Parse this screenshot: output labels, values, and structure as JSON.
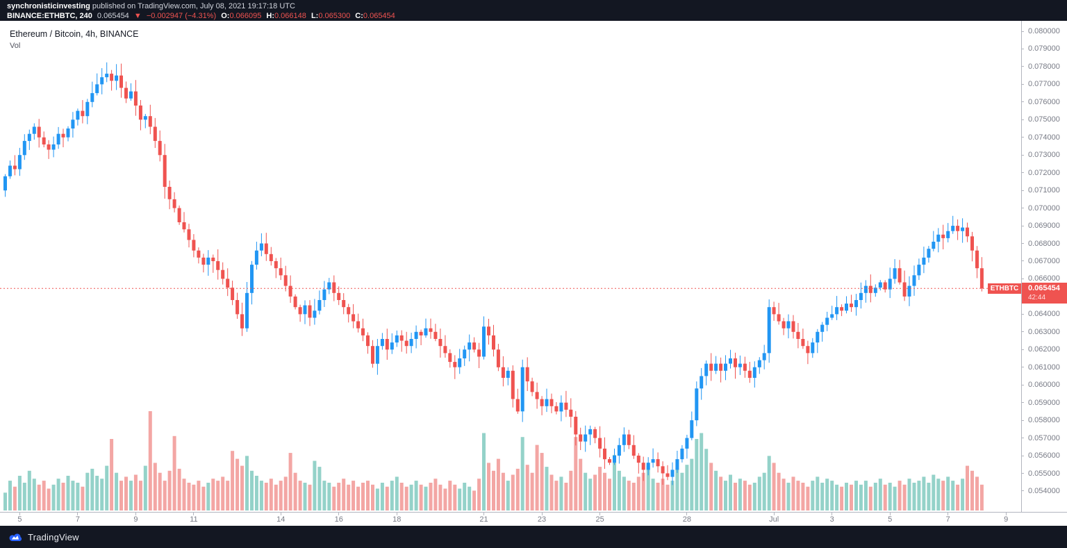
{
  "header": {
    "line1_user": "synchronisticinvesting",
    "line1_rest": " published on TradingView.com, July 08, 2021 19:17:18 UTC",
    "symbol": "BINANCE:ETHBTC, 240",
    "last": "0.065454",
    "arrow": "▼",
    "change": "−0.002947 (−4.31%)",
    "o": {
      "label": "O:",
      "value": "0.066095"
    },
    "h": {
      "label": "H:",
      "value": "0.066148"
    },
    "l": {
      "label": "L:",
      "value": "0.065300"
    },
    "c": {
      "label": "C:",
      "value": "0.065454"
    }
  },
  "pane": {
    "title": "Ethereum / Bitcoin, 4h, BINANCE",
    "vol_label": "Vol"
  },
  "price_scale": {
    "labels": [
      "0.080000",
      "0.079000",
      "0.078000",
      "0.077000",
      "0.076000",
      "0.075000",
      "0.074000",
      "0.073000",
      "0.072000",
      "0.071000",
      "0.070000",
      "0.069000",
      "0.068000",
      "0.067000",
      "0.066000",
      "0.065000",
      "0.064000",
      "0.063000",
      "0.062000",
      "0.061000",
      "0.060000",
      "0.059000",
      "0.058000",
      "0.057000",
      "0.056000",
      "0.055000",
      "0.054000"
    ]
  },
  "time_scale": {
    "labels": [
      {
        "text": "5",
        "i": 3
      },
      {
        "text": "7",
        "i": 15
      },
      {
        "text": "9",
        "i": 27
      },
      {
        "text": "11",
        "i": 39
      },
      {
        "text": "14",
        "i": 57
      },
      {
        "text": "16",
        "i": 69
      },
      {
        "text": "18",
        "i": 81
      },
      {
        "text": "21",
        "i": 99
      },
      {
        "text": "23",
        "i": 111
      },
      {
        "text": "25",
        "i": 123
      },
      {
        "text": "28",
        "i": 141
      },
      {
        "text": "Jul",
        "i": 159
      },
      {
        "text": "3",
        "i": 171
      },
      {
        "text": "5",
        "i": 183
      },
      {
        "text": "7",
        "i": 195
      },
      {
        "text": "9",
        "i": 207
      }
    ]
  },
  "tags": {
    "symbol_tag": "ETHBTC",
    "axis_price": "0.065454",
    "countdown": "42:44"
  },
  "footer": {
    "brand": "TradingView"
  },
  "colors": {
    "up": "#2196f3",
    "down": "#ef5350",
    "vol_up": "#94d2c9",
    "vol_down": "#f3a6a4",
    "accent_red": "#ef5350",
    "bg_dark": "#131722",
    "axis_text": "#787b86"
  },
  "chart_data": {
    "type": "candlestick_with_volume",
    "symbol": "ETHBTC",
    "exchange": "BINANCE",
    "interval": "4h",
    "title": "Ethereum / Bitcoin, 4h, BINANCE",
    "x_range": "June 4 2021 – July 8 2021 (4h candles)",
    "ylim": [
      0.0535,
      0.0805
    ],
    "last_price": 0.065454,
    "grid": false,
    "first_open": 0.071,
    "closes": [
      0.0718,
      0.0724,
      0.0722,
      0.073,
      0.0738,
      0.0742,
      0.0746,
      0.074,
      0.0736,
      0.0733,
      0.0736,
      0.0742,
      0.074,
      0.0745,
      0.075,
      0.0755,
      0.0752,
      0.076,
      0.0765,
      0.077,
      0.0774,
      0.0776,
      0.0772,
      0.0775,
      0.0768,
      0.0762,
      0.0766,
      0.0758,
      0.075,
      0.0752,
      0.0746,
      0.0738,
      0.073,
      0.0712,
      0.0705,
      0.07,
      0.0692,
      0.0688,
      0.0682,
      0.0676,
      0.0672,
      0.0668,
      0.0672,
      0.067,
      0.0665,
      0.066,
      0.0655,
      0.0648,
      0.064,
      0.0632,
      0.0652,
      0.0668,
      0.0676,
      0.068,
      0.0674,
      0.067,
      0.0666,
      0.0662,
      0.0656,
      0.065,
      0.0644,
      0.064,
      0.0645,
      0.0638,
      0.0642,
      0.0648,
      0.0654,
      0.0658,
      0.0652,
      0.0648,
      0.0644,
      0.064,
      0.0636,
      0.0632,
      0.0628,
      0.0622,
      0.0612,
      0.0622,
      0.0626,
      0.062,
      0.0624,
      0.0628,
      0.0625,
      0.0622,
      0.0626,
      0.063,
      0.0628,
      0.0632,
      0.063,
      0.0626,
      0.0622,
      0.0618,
      0.0613,
      0.061,
      0.0615,
      0.062,
      0.0624,
      0.062,
      0.0616,
      0.0633,
      0.0628,
      0.062,
      0.061,
      0.0604,
      0.0608,
      0.0592,
      0.0585,
      0.061,
      0.0602,
      0.0596,
      0.0592,
      0.0588,
      0.0592,
      0.0588,
      0.0585,
      0.059,
      0.0586,
      0.0582,
      0.0572,
      0.0568,
      0.0572,
      0.0575,
      0.057,
      0.0564,
      0.0558,
      0.0556,
      0.056,
      0.0566,
      0.0572,
      0.0566,
      0.056,
      0.0556,
      0.0552,
      0.0556,
      0.0558,
      0.0554,
      0.055,
      0.0548,
      0.0552,
      0.0558,
      0.0564,
      0.057,
      0.058,
      0.0598,
      0.0605,
      0.0612,
      0.0608,
      0.0612,
      0.0608,
      0.0612,
      0.0615,
      0.061,
      0.0612,
      0.0608,
      0.0604,
      0.061,
      0.0614,
      0.0618,
      0.0644,
      0.064,
      0.0636,
      0.0632,
      0.0636,
      0.063,
      0.0626,
      0.0622,
      0.0618,
      0.0624,
      0.063,
      0.0634,
      0.0638,
      0.064,
      0.0644,
      0.0642,
      0.0646,
      0.0644,
      0.0648,
      0.0652,
      0.0656,
      0.0652,
      0.0655,
      0.0658,
      0.0654,
      0.066,
      0.0666,
      0.0658,
      0.065,
      0.0656,
      0.0662,
      0.0668,
      0.0672,
      0.0677,
      0.0681,
      0.0685,
      0.0683,
      0.0687,
      0.069,
      0.0687,
      0.0689,
      0.0684,
      0.0676,
      0.0666,
      0.065454
    ],
    "volumes": [
      18,
      30,
      24,
      35,
      28,
      40,
      32,
      26,
      30,
      22,
      26,
      32,
      28,
      35,
      30,
      28,
      24,
      38,
      42,
      35,
      32,
      45,
      72,
      38,
      30,
      34,
      30,
      36,
      30,
      45,
      100,
      48,
      38,
      30,
      40,
      75,
      42,
      32,
      28,
      26,
      30,
      24,
      28,
      32,
      30,
      34,
      30,
      60,
      52,
      45,
      55,
      40,
      35,
      30,
      28,
      32,
      26,
      30,
      34,
      58,
      38,
      30,
      28,
      26,
      50,
      44,
      30,
      28,
      24,
      28,
      32,
      26,
      30,
      24,
      28,
      30,
      26,
      22,
      28,
      24,
      30,
      34,
      28,
      24,
      26,
      30,
      26,
      24,
      28,
      32,
      26,
      22,
      30,
      26,
      22,
      28,
      24,
      20,
      32,
      78,
      48,
      40,
      52,
      38,
      30,
      36,
      42,
      74,
      46,
      38,
      66,
      58,
      44,
      36,
      30,
      34,
      28,
      40,
      74,
      52,
      38,
      32,
      36,
      44,
      38,
      32,
      56,
      40,
      34,
      30,
      28,
      34,
      38,
      45,
      32,
      28,
      32,
      26,
      30,
      42,
      38,
      46,
      52,
      72,
      78,
      62,
      48,
      40,
      34,
      30,
      36,
      28,
      32,
      30,
      26,
      28,
      34,
      38,
      55,
      48,
      38,
      32,
      28,
      34,
      30,
      28,
      24,
      30,
      34,
      28,
      32,
      30,
      26,
      24,
      28,
      26,
      30,
      26,
      30,
      24,
      28,
      32,
      26,
      28,
      24,
      30,
      26,
      32,
      28,
      30,
      34,
      28,
      36,
      32,
      30,
      34,
      30,
      26,
      32,
      45,
      40,
      34,
      26
    ]
  }
}
